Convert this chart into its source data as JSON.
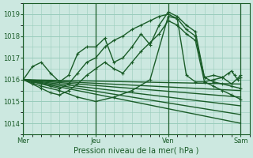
{
  "background_color": "#cce8e0",
  "plot_bg_color": "#cce8e0",
  "grid_color": "#99ccbb",
  "line_color": "#1a5c28",
  "marker_color": "#1a5c28",
  "xlabel": "Pression niveau de la mer( hPa )",
  "xtick_labels": [
    "Mer",
    "Jeu",
    "Ven",
    "Sam"
  ],
  "xtick_positions": [
    0,
    48,
    96,
    144
  ],
  "ylim": [
    1013.5,
    1019.5
  ],
  "yticks": [
    1014,
    1015,
    1016,
    1017,
    1018,
    1019
  ],
  "xlim": [
    0,
    150
  ],
  "series": [
    {
      "x": [
        0,
        6,
        12,
        18,
        24,
        30,
        36,
        42,
        48,
        54,
        60,
        66,
        72,
        78,
        84,
        90,
        96,
        102,
        108,
        114,
        120,
        126,
        132,
        138,
        144
      ],
      "y": [
        1016.0,
        1016.6,
        1016.8,
        1016.3,
        1015.9,
        1016.2,
        1017.2,
        1017.5,
        1017.5,
        1017.9,
        1016.8,
        1017.0,
        1017.5,
        1018.1,
        1017.6,
        1018.5,
        1019.1,
        1018.9,
        1018.5,
        1018.2,
        1016.1,
        1016.2,
        1016.1,
        1015.8,
        1016.2
      ],
      "lw": 1.0,
      "marker": "+"
    },
    {
      "x": [
        0,
        6,
        12,
        18,
        24,
        30,
        36,
        42,
        48,
        54,
        60,
        66,
        72,
        78,
        84,
        90,
        96,
        102,
        108,
        114,
        120,
        126,
        132,
        138,
        144
      ],
      "y": [
        1016.0,
        1015.9,
        1015.8,
        1015.7,
        1015.6,
        1015.8,
        1016.3,
        1016.8,
        1017.0,
        1017.5,
        1017.8,
        1018.0,
        1018.3,
        1018.5,
        1018.7,
        1018.9,
        1019.0,
        1018.8,
        1018.3,
        1018.0,
        1016.1,
        1015.9,
        1015.8,
        1015.7,
        1015.6
      ],
      "lw": 1.0,
      "marker": "+"
    },
    {
      "x": [
        0,
        144
      ],
      "y": [
        1016.0,
        1015.8
      ],
      "lw": 1.0,
      "marker": null
    },
    {
      "x": [
        0,
        144
      ],
      "y": [
        1016.0,
        1015.5
      ],
      "lw": 1.0,
      "marker": null
    },
    {
      "x": [
        0,
        144
      ],
      "y": [
        1016.0,
        1015.2
      ],
      "lw": 1.0,
      "marker": null
    },
    {
      "x": [
        0,
        144
      ],
      "y": [
        1016.0,
        1014.8
      ],
      "lw": 1.0,
      "marker": null
    },
    {
      "x": [
        0,
        144
      ],
      "y": [
        1016.0,
        1014.4
      ],
      "lw": 1.0,
      "marker": null
    },
    {
      "x": [
        0,
        144
      ],
      "y": [
        1016.0,
        1014.0
      ],
      "lw": 1.0,
      "marker": null
    },
    {
      "x": [
        0,
        6,
        12,
        18,
        24,
        30,
        36,
        42,
        48,
        54,
        60,
        66,
        72,
        78,
        84,
        90,
        96,
        102,
        108,
        114,
        120,
        126,
        132,
        138,
        144
      ],
      "y": [
        1016.0,
        1015.8,
        1015.6,
        1015.4,
        1015.3,
        1015.5,
        1015.8,
        1016.2,
        1016.5,
        1016.8,
        1016.5,
        1016.3,
        1016.8,
        1017.3,
        1017.7,
        1018.1,
        1018.7,
        1018.5,
        1018.1,
        1017.8,
        1015.9,
        1015.7,
        1015.5,
        1015.3,
        1015.1
      ],
      "lw": 1.0,
      "marker": "+"
    },
    {
      "x": [
        0,
        12,
        24,
        36,
        48,
        60,
        72,
        84,
        96,
        102,
        108,
        114,
        120,
        126,
        132,
        136,
        138,
        140,
        142,
        144
      ],
      "y": [
        1016.0,
        1015.7,
        1015.5,
        1015.2,
        1015.0,
        1015.2,
        1015.5,
        1016.0,
        1018.9,
        1018.8,
        1016.2,
        1015.9,
        1015.9,
        1016.0,
        1016.1,
        1016.3,
        1016.4,
        1016.2,
        1016.0,
        1016.1
      ],
      "lw": 1.0,
      "marker": "+"
    }
  ],
  "day_lines": [
    0,
    48,
    96,
    144
  ],
  "vline_color": "#1a5c28"
}
